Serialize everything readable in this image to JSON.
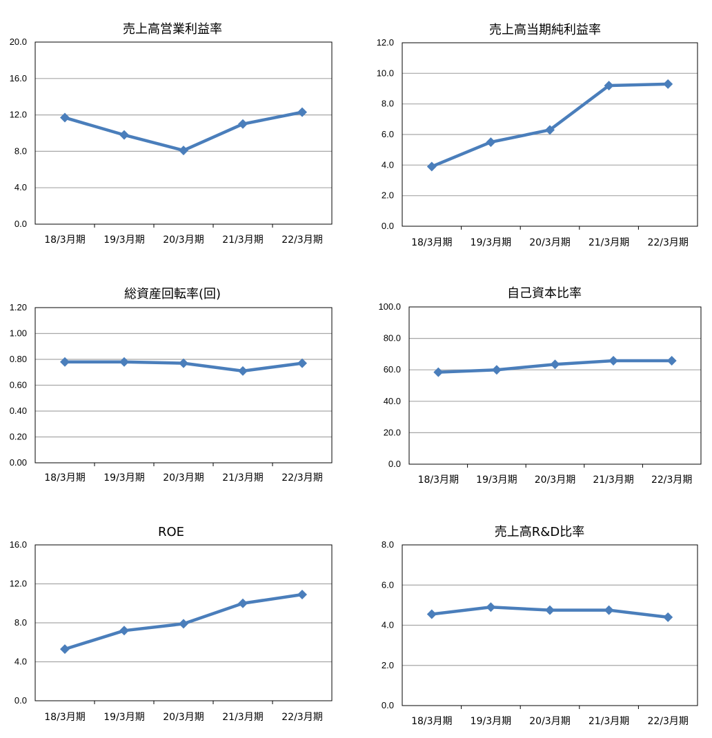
{
  "style": {
    "line_color": "#4a7ebb",
    "grid_color": "#a6a6a6",
    "frame_color": "#000000"
  },
  "chart_data": [
    {
      "id": "c1",
      "type": "line",
      "title": "売上高営業利益率",
      "categories": [
        "18/3月期",
        "19/3月期",
        "20/3月期",
        "21/3月期",
        "22/3月期"
      ],
      "values": [
        11.7,
        9.8,
        8.1,
        11.0,
        12.3
      ],
      "ylim": [
        0,
        20
      ],
      "yticks": [
        "0.0",
        "4.0",
        "8.0",
        "12.0",
        "16.0",
        "20.0"
      ],
      "grid": true,
      "legend": "none"
    },
    {
      "id": "c2",
      "type": "line",
      "title": "売上高当期純利益率",
      "categories": [
        "18/3月期",
        "19/3月期",
        "20/3月期",
        "21/3月期",
        "22/3月期"
      ],
      "values": [
        3.9,
        5.5,
        6.3,
        9.2,
        9.3
      ],
      "ylim": [
        0,
        12
      ],
      "yticks": [
        "0.0",
        "2.0",
        "4.0",
        "6.0",
        "8.0",
        "10.0",
        "12.0"
      ],
      "grid": true,
      "legend": "none"
    },
    {
      "id": "c3",
      "type": "line",
      "title": "総資産回転率(回)",
      "categories": [
        "18/3月期",
        "19/3月期",
        "20/3月期",
        "21/3月期",
        "22/3月期"
      ],
      "values": [
        0.78,
        0.78,
        0.77,
        0.71,
        0.77
      ],
      "ylim": [
        0,
        1.2
      ],
      "yticks": [
        "0.00",
        "0.20",
        "0.40",
        "0.60",
        "0.80",
        "1.00",
        "1.20"
      ],
      "grid": true,
      "legend": "none"
    },
    {
      "id": "c4",
      "type": "line",
      "title": "自己資本比率",
      "categories": [
        "18/3月期",
        "19/3月期",
        "20/3月期",
        "21/3月期",
        "22/3月期"
      ],
      "values": [
        58.5,
        60.0,
        63.5,
        65.8,
        65.8
      ],
      "ylim": [
        0,
        100
      ],
      "yticks": [
        "0.0",
        "20.0",
        "40.0",
        "60.0",
        "80.0",
        "100.0"
      ],
      "grid": true,
      "legend": "none"
    },
    {
      "id": "c5",
      "type": "line",
      "title": "ROE",
      "categories": [
        "18/3月期",
        "19/3月期",
        "20/3月期",
        "21/3月期",
        "22/3月期"
      ],
      "values": [
        5.3,
        7.2,
        7.9,
        10.0,
        10.9
      ],
      "ylim": [
        0,
        16
      ],
      "yticks": [
        "0.0",
        "4.0",
        "8.0",
        "12.0",
        "16.0"
      ],
      "grid": true,
      "legend": "none"
    },
    {
      "id": "c6",
      "type": "line",
      "title": "売上高R&D比率",
      "categories": [
        "18/3月期",
        "19/3月期",
        "20/3月期",
        "21/3月期",
        "22/3月期"
      ],
      "values": [
        4.55,
        4.9,
        4.75,
        4.75,
        4.4
      ],
      "ylim": [
        0,
        8
      ],
      "yticks": [
        "0.0",
        "2.0",
        "4.0",
        "6.0",
        "8.0"
      ],
      "grid": true,
      "legend": "none"
    }
  ]
}
